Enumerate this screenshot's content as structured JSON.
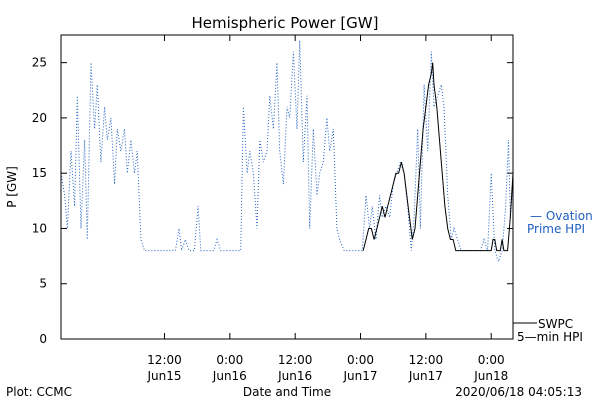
{
  "chart_data": {
    "type": "line",
    "title": "Hemispheric Power [GW]",
    "ylabel": "P [GW]",
    "xlabel": "Date and Time",
    "ylim": [
      0,
      27.5
    ],
    "xlim": [
      "2020-06-14T17:00",
      "2020-06-18T04:00"
    ],
    "yticks": [
      0,
      5,
      10,
      15,
      20,
      25
    ],
    "xticks": [
      {
        "time": "2020-06-15T12:00",
        "line1": "12:00",
        "line2": "Jun15"
      },
      {
        "time": "2020-06-16T00:00",
        "line1": "0:00",
        "line2": "Jun16"
      },
      {
        "time": "2020-06-16T12:00",
        "line1": "12:00",
        "line2": "Jun16"
      },
      {
        "time": "2020-06-17T00:00",
        "line1": "0:00",
        "line2": "Jun17"
      },
      {
        "time": "2020-06-17T12:00",
        "line1": "12:00",
        "line2": "Jun17"
      },
      {
        "time": "2020-06-18T00:00",
        "line1": "0:00",
        "line2": "Jun18"
      }
    ],
    "grid": false,
    "series": [
      {
        "name": "Ovation Prime HPI",
        "style": "dotted",
        "color": "#2060c0",
        "legend_label": [
          "— Ovation",
          "Prime HPI"
        ],
        "points": [
          [
            "2020-06-14T17:00",
            15
          ],
          [
            "2020-06-14T17:40",
            13
          ],
          [
            "2020-06-14T18:10",
            10
          ],
          [
            "2020-06-14T18:50",
            17
          ],
          [
            "2020-06-14T19:30",
            12
          ],
          [
            "2020-06-14T20:00",
            22
          ],
          [
            "2020-06-14T20:40",
            10
          ],
          [
            "2020-06-14T21:20",
            18
          ],
          [
            "2020-06-14T21:50",
            9
          ],
          [
            "2020-06-14T22:30",
            25
          ],
          [
            "2020-06-14T23:10",
            19
          ],
          [
            "2020-06-14T23:40",
            23
          ],
          [
            "2020-06-15T00:20",
            16
          ],
          [
            "2020-06-15T01:00",
            21
          ],
          [
            "2020-06-15T01:30",
            18
          ],
          [
            "2020-06-15T02:10",
            20
          ],
          [
            "2020-06-15T02:50",
            14
          ],
          [
            "2020-06-15T03:20",
            19
          ],
          [
            "2020-06-15T04:00",
            17
          ],
          [
            "2020-06-15T04:40",
            19
          ],
          [
            "2020-06-15T05:10",
            15
          ],
          [
            "2020-06-15T05:50",
            18
          ],
          [
            "2020-06-15T06:30",
            15
          ],
          [
            "2020-06-15T07:00",
            17
          ],
          [
            "2020-06-15T07:40",
            9
          ],
          [
            "2020-06-15T08:20",
            8
          ],
          [
            "2020-06-15T12:00",
            8
          ],
          [
            "2020-06-15T14:00",
            8
          ],
          [
            "2020-06-15T14:40",
            10
          ],
          [
            "2020-06-15T15:10",
            8
          ],
          [
            "2020-06-15T15:50",
            9
          ],
          [
            "2020-06-15T16:30",
            8
          ],
          [
            "2020-06-15T17:30",
            8
          ],
          [
            "2020-06-15T18:10",
            12
          ],
          [
            "2020-06-15T18:40",
            8
          ],
          [
            "2020-06-15T21:00",
            8
          ],
          [
            "2020-06-15T21:40",
            9
          ],
          [
            "2020-06-15T22:20",
            8
          ],
          [
            "2020-06-16T02:00",
            8
          ],
          [
            "2020-06-16T02:30",
            21
          ],
          [
            "2020-06-16T03:10",
            15
          ],
          [
            "2020-06-16T03:40",
            17
          ],
          [
            "2020-06-16T04:20",
            15
          ],
          [
            "2020-06-16T05:00",
            10
          ],
          [
            "2020-06-16T05:30",
            18
          ],
          [
            "2020-06-16T06:10",
            16
          ],
          [
            "2020-06-16T06:50",
            17
          ],
          [
            "2020-06-16T07:20",
            22
          ],
          [
            "2020-06-16T08:00",
            19
          ],
          [
            "2020-06-16T08:40",
            25
          ],
          [
            "2020-06-16T09:10",
            17
          ],
          [
            "2020-06-16T09:50",
            14
          ],
          [
            "2020-06-16T10:30",
            21
          ],
          [
            "2020-06-16T11:00",
            20
          ],
          [
            "2020-06-16T11:40",
            26
          ],
          [
            "2020-06-16T12:20",
            19
          ],
          [
            "2020-06-16T12:50",
            27
          ],
          [
            "2020-06-16T13:30",
            16
          ],
          [
            "2020-06-16T14:10",
            22
          ],
          [
            "2020-06-16T14:40",
            10
          ],
          [
            "2020-06-16T15:20",
            19
          ],
          [
            "2020-06-16T16:00",
            13
          ],
          [
            "2020-06-16T16:30",
            15
          ],
          [
            "2020-06-16T17:10",
            16
          ],
          [
            "2020-06-16T17:50",
            20
          ],
          [
            "2020-06-16T18:20",
            17
          ],
          [
            "2020-06-16T19:00",
            19
          ],
          [
            "2020-06-16T19:40",
            10
          ],
          [
            "2020-06-16T20:10",
            9
          ],
          [
            "2020-06-16T21:00",
            8
          ],
          [
            "2020-06-16T23:00",
            8
          ],
          [
            "2020-06-17T00:20",
            8
          ],
          [
            "2020-06-17T01:00",
            13
          ],
          [
            "2020-06-17T01:40",
            10
          ],
          [
            "2020-06-17T02:10",
            12
          ],
          [
            "2020-06-17T02:50",
            9
          ],
          [
            "2020-06-17T03:30",
            13
          ],
          [
            "2020-06-17T04:00",
            11
          ],
          [
            "2020-06-17T04:40",
            12
          ],
          [
            "2020-06-17T05:20",
            11
          ],
          [
            "2020-06-17T06:00",
            14
          ],
          [
            "2020-06-17T06:40",
            15
          ],
          [
            "2020-06-17T07:20",
            16
          ],
          [
            "2020-06-17T08:00",
            15
          ],
          [
            "2020-06-17T08:40",
            12
          ],
          [
            "2020-06-17T09:20",
            8
          ],
          [
            "2020-06-17T09:50",
            11
          ],
          [
            "2020-06-17T10:30",
            19
          ],
          [
            "2020-06-17T11:00",
            10
          ],
          [
            "2020-06-17T11:40",
            23
          ],
          [
            "2020-06-17T12:20",
            17
          ],
          [
            "2020-06-17T13:00",
            26
          ],
          [
            "2020-06-17T13:30",
            21
          ],
          [
            "2020-06-17T14:10",
            22
          ],
          [
            "2020-06-17T14:50",
            23
          ],
          [
            "2020-06-17T15:20",
            21
          ],
          [
            "2020-06-17T16:00",
            13
          ],
          [
            "2020-06-17T16:40",
            9
          ],
          [
            "2020-06-17T17:10",
            10
          ],
          [
            "2020-06-17T17:50",
            9
          ],
          [
            "2020-06-17T18:30",
            8
          ],
          [
            "2020-06-17T22:00",
            8
          ],
          [
            "2020-06-17T22:40",
            9
          ],
          [
            "2020-06-17T23:20",
            8
          ],
          [
            "2020-06-18T00:00",
            15
          ],
          [
            "2020-06-18T00:40",
            8
          ],
          [
            "2020-06-18T01:20",
            7
          ],
          [
            "2020-06-18T02:00",
            8
          ],
          [
            "2020-06-18T02:40",
            12
          ],
          [
            "2020-06-18T03:10",
            18
          ],
          [
            "2020-06-18T03:30",
            11
          ],
          [
            "2020-06-18T04:00",
            14
          ]
        ]
      },
      {
        "name": "SWPC 5-min HPI",
        "style": "solid",
        "color": "#000000",
        "legend_label": [
          "SWPC",
          "5—min HPI"
        ],
        "points": [
          [
            "2020-06-17T00:30",
            8
          ],
          [
            "2020-06-17T01:00",
            9
          ],
          [
            "2020-06-17T01:30",
            10
          ],
          [
            "2020-06-17T02:00",
            10
          ],
          [
            "2020-06-17T02:30",
            9
          ],
          [
            "2020-06-17T03:00",
            10
          ],
          [
            "2020-06-17T03:30",
            11
          ],
          [
            "2020-06-17T04:00",
            12
          ],
          [
            "2020-06-17T04:30",
            11
          ],
          [
            "2020-06-17T05:00",
            12
          ],
          [
            "2020-06-17T05:30",
            13
          ],
          [
            "2020-06-17T06:00",
            14
          ],
          [
            "2020-06-17T06:30",
            15
          ],
          [
            "2020-06-17T07:00",
            15
          ],
          [
            "2020-06-17T07:30",
            16
          ],
          [
            "2020-06-17T08:00",
            15
          ],
          [
            "2020-06-17T08:30",
            13
          ],
          [
            "2020-06-17T09:00",
            11
          ],
          [
            "2020-06-17T09:30",
            9
          ],
          [
            "2020-06-17T10:00",
            10
          ],
          [
            "2020-06-17T10:30",
            13
          ],
          [
            "2020-06-17T11:00",
            16
          ],
          [
            "2020-06-17T11:30",
            19
          ],
          [
            "2020-06-17T12:00",
            21
          ],
          [
            "2020-06-17T12:30",
            23
          ],
          [
            "2020-06-17T13:00",
            24
          ],
          [
            "2020-06-17T13:15",
            25
          ],
          [
            "2020-06-17T13:30",
            23
          ],
          [
            "2020-06-17T14:00",
            21
          ],
          [
            "2020-06-17T14:30",
            18
          ],
          [
            "2020-06-17T15:00",
            15
          ],
          [
            "2020-06-17T15:30",
            12
          ],
          [
            "2020-06-17T16:00",
            10
          ],
          [
            "2020-06-17T16:30",
            9
          ],
          [
            "2020-06-17T17:00",
            9
          ],
          [
            "2020-06-17T17:30",
            8
          ],
          [
            "2020-06-18T00:00",
            8
          ],
          [
            "2020-06-18T00:20",
            9
          ],
          [
            "2020-06-18T00:40",
            9
          ],
          [
            "2020-06-18T01:00",
            8
          ],
          [
            "2020-06-18T01:40",
            8
          ],
          [
            "2020-06-18T02:00",
            9
          ],
          [
            "2020-06-18T02:20",
            8
          ],
          [
            "2020-06-18T03:00",
            8
          ],
          [
            "2020-06-18T03:30",
            11
          ],
          [
            "2020-06-18T04:00",
            15
          ]
        ]
      }
    ]
  },
  "footer": {
    "left": "Plot: CCMC",
    "center": "Date and Time",
    "right": "2020/06/18 04:05:13"
  }
}
